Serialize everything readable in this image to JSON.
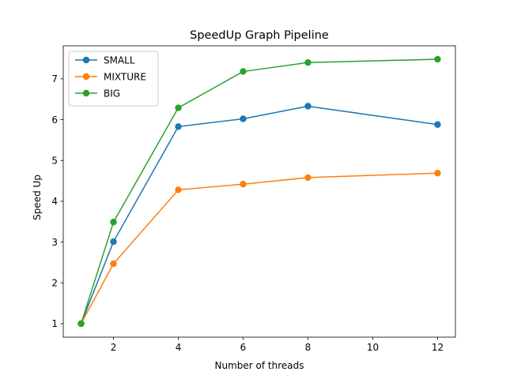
{
  "chart_data": {
    "type": "line",
    "title": "SpeedUp Graph Pipeline",
    "xlabel": "Number of threads",
    "ylabel": "Speed Up",
    "x": [
      1,
      2,
      4,
      6,
      8,
      12
    ],
    "xlim": [
      0.45,
      12.55
    ],
    "ylim": [
      0.67,
      7.81
    ],
    "xticks": [
      2,
      4,
      6,
      8,
      10,
      12
    ],
    "yticks": [
      1,
      2,
      3,
      4,
      5,
      6,
      7
    ],
    "grid": false,
    "legend_position": "top-left",
    "series": [
      {
        "name": "SMALL",
        "color": "#1f77b4",
        "values": [
          1.0,
          3.01,
          5.83,
          6.02,
          6.33,
          5.88
        ]
      },
      {
        "name": "MIXTURE",
        "color": "#ff7f0e",
        "values": [
          1.0,
          2.47,
          4.28,
          4.42,
          4.58,
          4.69
        ]
      },
      {
        "name": "BIG",
        "color": "#2ca02c",
        "values": [
          1.0,
          3.49,
          6.29,
          7.18,
          7.4,
          7.48
        ]
      }
    ]
  }
}
